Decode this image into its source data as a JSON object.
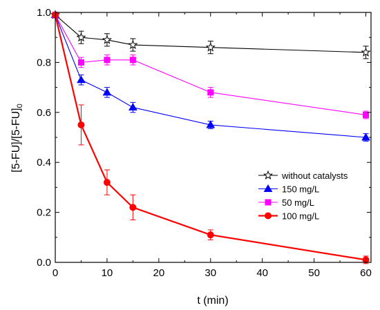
{
  "chart_data": {
    "type": "line",
    "xlabel": "t (min)",
    "ylabel": "[5-FU]/[5-FU]",
    "ylabel_sub": "0",
    "xlim": [
      0,
      61
    ],
    "ylim": [
      0,
      1.0
    ],
    "xticks": [
      "0",
      "10",
      "20",
      "30",
      "40",
      "50",
      "60"
    ],
    "yticks": [
      "0.0",
      "0.2",
      "0.4",
      "0.6",
      "0.8",
      "1.0"
    ],
    "grid": false,
    "legend_position": "right-middle",
    "series": [
      {
        "name": "without catalysts",
        "color": "#000000",
        "marker": "open-star",
        "x": [
          0,
          5,
          10,
          15,
          30,
          60
        ],
        "y": [
          0.99,
          0.9,
          0.89,
          0.87,
          0.86,
          0.84
        ],
        "err": [
          0,
          0.025,
          0.025,
          0.025,
          0.025,
          0.025
        ]
      },
      {
        "name": "150 mg/L",
        "color": "#0000ff",
        "marker": "triangle",
        "x": [
          0,
          5,
          10,
          15,
          30,
          60
        ],
        "y": [
          0.99,
          0.73,
          0.68,
          0.62,
          0.55,
          0.5
        ],
        "err": [
          0,
          0.02,
          0.02,
          0.02,
          0.015,
          0.015
        ]
      },
      {
        "name": "50 mg/L",
        "color": "#ff00ff",
        "marker": "square",
        "x": [
          0,
          5,
          10,
          15,
          30,
          60
        ],
        "y": [
          0.99,
          0.8,
          0.81,
          0.81,
          0.68,
          0.59
        ],
        "err": [
          0,
          0.02,
          0.02,
          0.02,
          0.02,
          0.015
        ]
      },
      {
        "name": "100 mg/L",
        "color": "#ff0000",
        "marker": "circle",
        "x": [
          0,
          5,
          10,
          15,
          30,
          60
        ],
        "y": [
          0.99,
          0.55,
          0.32,
          0.22,
          0.11,
          0.01
        ],
        "err": [
          0,
          0.08,
          0.05,
          0.05,
          0.02,
          0.015
        ]
      }
    ]
  }
}
